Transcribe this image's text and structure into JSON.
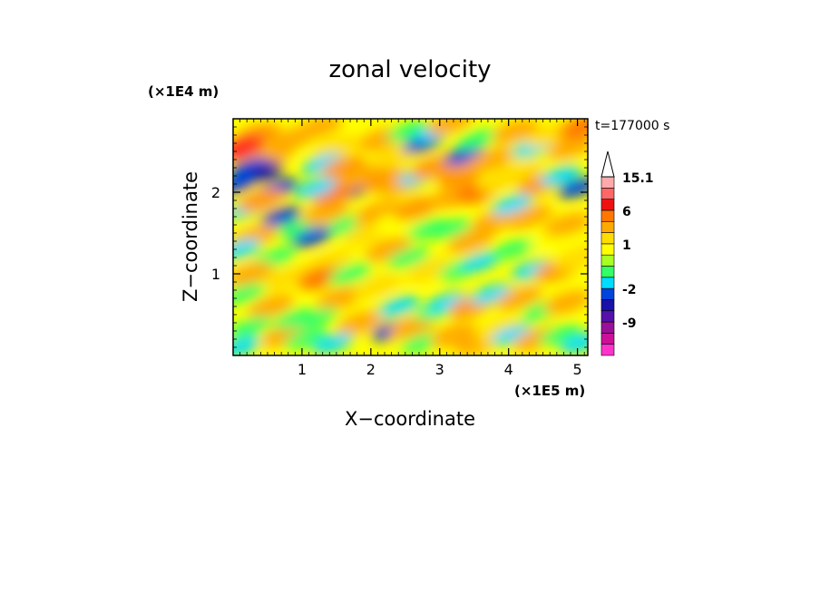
{
  "chart_data": {
    "type": "heatmap",
    "title": "zonal velocity",
    "xlabel": "X−coordinate",
    "ylabel": "Z−coordinate",
    "x_unit": "(×1E5 m)",
    "y_unit": "(×1E4 m)",
    "time_label": "t=177000 s",
    "xlim": [
      0,
      5.15
    ],
    "ylim": [
      0,
      2.9
    ],
    "x_ticks": [
      {
        "value": 1,
        "label": "1"
      },
      {
        "value": 2,
        "label": "2"
      },
      {
        "value": 3,
        "label": "3"
      },
      {
        "value": 4,
        "label": "4"
      },
      {
        "value": 5,
        "label": "5"
      }
    ],
    "y_ticks": [
      {
        "value": 1,
        "label": "1"
      },
      {
        "value": 2,
        "label": "2"
      }
    ],
    "colorbar": {
      "levels": [
        {
          "color": "#ff33cc"
        },
        {
          "color": "#cc1199"
        },
        {
          "color": "#991199",
          "label": "-9"
        },
        {
          "color": "#5511aa"
        },
        {
          "color": "#1a11aa"
        },
        {
          "color": "#0044dd",
          "label": "-2"
        },
        {
          "color": "#00ddff"
        },
        {
          "color": "#33ff66"
        },
        {
          "color": "#a8ff22"
        },
        {
          "color": "#ffff00",
          "label": "1"
        },
        {
          "color": "#ffdd00"
        },
        {
          "color": "#ffaa00"
        },
        {
          "color": "#ff7700",
          "label": "6"
        },
        {
          "color": "#ee1111"
        },
        {
          "color": "#ff6666"
        },
        {
          "color": "#ffaaaa",
          "label": "15.1"
        }
      ]
    },
    "features": [
      {
        "x": 0.35,
        "z": 2.7,
        "v": 4
      },
      {
        "x": 0.15,
        "z": 2.55,
        "v": 6
      },
      {
        "x": 0.55,
        "z": 2.45,
        "v": 3
      },
      {
        "x": 0.25,
        "z": 2.3,
        "v": -3
      },
      {
        "x": 0.45,
        "z": 2.25,
        "v": -4
      },
      {
        "x": 0.65,
        "z": 2.05,
        "v": -3
      },
      {
        "x": 0.05,
        "z": 2.1,
        "v": -3
      },
      {
        "x": 0.85,
        "z": 2.65,
        "v": 3
      },
      {
        "x": 0.2,
        "z": 1.8,
        "v": -2
      },
      {
        "x": 0.4,
        "z": 1.9,
        "v": 4
      },
      {
        "x": 0.7,
        "z": 1.7,
        "v": -3
      },
      {
        "x": 0.95,
        "z": 1.55,
        "v": -1
      },
      {
        "x": 0.3,
        "z": 1.45,
        "v": 3
      },
      {
        "x": 0.1,
        "z": 1.3,
        "v": -2
      },
      {
        "x": 0.6,
        "z": 1.2,
        "v": -1
      },
      {
        "x": 0.25,
        "z": 1.0,
        "v": 3
      },
      {
        "x": 0.8,
        "z": 0.95,
        "v": 2
      },
      {
        "x": 0.15,
        "z": 0.75,
        "v": -1
      },
      {
        "x": 0.55,
        "z": 0.6,
        "v": 3
      },
      {
        "x": 0.25,
        "z": 0.35,
        "v": -1
      },
      {
        "x": 0.75,
        "z": 0.25,
        "v": 3
      },
      {
        "x": 0.1,
        "z": 0.1,
        "v": -2
      },
      {
        "x": 0.9,
        "z": 0.45,
        "v": -1
      },
      {
        "x": 1.25,
        "z": 2.8,
        "v": 3
      },
      {
        "x": 1.5,
        "z": 2.55,
        "v": 2
      },
      {
        "x": 1.3,
        "z": 2.35,
        "v": -2
      },
      {
        "x": 1.6,
        "z": 2.3,
        "v": 4
      },
      {
        "x": 1.75,
        "z": 2.05,
        "v": -4
      },
      {
        "x": 1.45,
        "z": 2.0,
        "v": 5
      },
      {
        "x": 1.2,
        "z": 2.05,
        "v": -2
      },
      {
        "x": 1.9,
        "z": 2.2,
        "v": 3
      },
      {
        "x": 1.35,
        "z": 1.75,
        "v": 3
      },
      {
        "x": 1.65,
        "z": 1.6,
        "v": -1
      },
      {
        "x": 1.15,
        "z": 1.45,
        "v": -3
      },
      {
        "x": 1.95,
        "z": 1.5,
        "v": 2
      },
      {
        "x": 1.4,
        "z": 1.15,
        "v": 2
      },
      {
        "x": 1.25,
        "z": 0.95,
        "v": 5
      },
      {
        "x": 1.7,
        "z": 1.0,
        "v": -1
      },
      {
        "x": 1.55,
        "z": 0.7,
        "v": 3
      },
      {
        "x": 1.2,
        "z": 0.45,
        "v": -1
      },
      {
        "x": 1.85,
        "z": 0.4,
        "v": 3
      },
      {
        "x": 1.45,
        "z": 0.15,
        "v": -2
      },
      {
        "x": 1.05,
        "z": 0.2,
        "v": -1
      },
      {
        "x": 2.15,
        "z": 2.65,
        "v": 3
      },
      {
        "x": 2.35,
        "z": 2.45,
        "v": 2
      },
      {
        "x": 2.55,
        "z": 2.75,
        "v": -1
      },
      {
        "x": 2.75,
        "z": 2.6,
        "v": -3
      },
      {
        "x": 2.95,
        "z": 2.75,
        "v": -2
      },
      {
        "x": 2.2,
        "z": 2.15,
        "v": 4
      },
      {
        "x": 2.45,
        "z": 2.1,
        "v": 3
      },
      {
        "x": 2.7,
        "z": 2.2,
        "v": -2
      },
      {
        "x": 2.9,
        "z": 2.3,
        "v": 4
      },
      {
        "x": 2.1,
        "z": 1.75,
        "v": 3
      },
      {
        "x": 2.4,
        "z": 1.65,
        "v": 1
      },
      {
        "x": 2.65,
        "z": 1.8,
        "v": 4
      },
      {
        "x": 2.85,
        "z": 1.55,
        "v": -1
      },
      {
        "x": 2.25,
        "z": 1.3,
        "v": 3
      },
      {
        "x": 2.55,
        "z": 1.2,
        "v": -1
      },
      {
        "x": 2.85,
        "z": 1.05,
        "v": 2
      },
      {
        "x": 2.1,
        "z": 0.85,
        "v": 2
      },
      {
        "x": 2.4,
        "z": 0.6,
        "v": -2
      },
      {
        "x": 2.3,
        "z": 0.3,
        "v": -3
      },
      {
        "x": 2.6,
        "z": 0.35,
        "v": 3
      },
      {
        "x": 2.95,
        "z": 0.55,
        "v": -1
      },
      {
        "x": 2.75,
        "z": 0.15,
        "v": -1
      },
      {
        "x": 3.15,
        "z": 2.85,
        "v": 3
      },
      {
        "x": 3.35,
        "z": 2.45,
        "v": -3
      },
      {
        "x": 3.3,
        "z": 2.2,
        "v": 4
      },
      {
        "x": 3.55,
        "z": 2.65,
        "v": -1
      },
      {
        "x": 3.75,
        "z": 2.4,
        "v": 3
      },
      {
        "x": 3.2,
        "z": 1.95,
        "v": 3
      },
      {
        "x": 3.55,
        "z": 2.0,
        "v": 5
      },
      {
        "x": 3.9,
        "z": 2.15,
        "v": 2
      },
      {
        "x": 3.15,
        "z": 1.55,
        "v": -1
      },
      {
        "x": 3.45,
        "z": 1.4,
        "v": 3
      },
      {
        "x": 3.8,
        "z": 1.65,
        "v": 3
      },
      {
        "x": 3.3,
        "z": 1.05,
        "v": -1
      },
      {
        "x": 3.6,
        "z": 1.15,
        "v": -2
      },
      {
        "x": 3.1,
        "z": 0.65,
        "v": -2
      },
      {
        "x": 3.45,
        "z": 0.6,
        "v": 4
      },
      {
        "x": 3.75,
        "z": 0.75,
        "v": -2
      },
      {
        "x": 3.2,
        "z": 0.25,
        "v": 3
      },
      {
        "x": 3.55,
        "z": 0.15,
        "v": 3
      },
      {
        "x": 3.85,
        "z": 0.3,
        "v": 2
      },
      {
        "x": 4.1,
        "z": 2.75,
        "v": 3
      },
      {
        "x": 4.35,
        "z": 2.55,
        "v": -2
      },
      {
        "x": 4.6,
        "z": 2.7,
        "v": 2
      },
      {
        "x": 4.9,
        "z": 2.55,
        "v": 3
      },
      {
        "x": 5.05,
        "z": 2.8,
        "v": 5
      },
      {
        "x": 4.15,
        "z": 2.25,
        "v": 2
      },
      {
        "x": 4.45,
        "z": 2.1,
        "v": 4
      },
      {
        "x": 4.75,
        "z": 2.2,
        "v": -2
      },
      {
        "x": 5.0,
        "z": 2.05,
        "v": -3
      },
      {
        "x": 4.05,
        "z": 1.85,
        "v": -2
      },
      {
        "x": 4.3,
        "z": 1.7,
        "v": 3
      },
      {
        "x": 4.6,
        "z": 1.45,
        "v": 1
      },
      {
        "x": 4.85,
        "z": 1.6,
        "v": 3
      },
      {
        "x": 4.05,
        "z": 1.3,
        "v": -1
      },
      {
        "x": 4.35,
        "z": 1.05,
        "v": -2
      },
      {
        "x": 4.7,
        "z": 1.05,
        "v": 4
      },
      {
        "x": 5.0,
        "z": 1.2,
        "v": 2
      },
      {
        "x": 4.15,
        "z": 0.7,
        "v": 3
      },
      {
        "x": 4.5,
        "z": 0.55,
        "v": -1
      },
      {
        "x": 4.85,
        "z": 0.65,
        "v": 3
      },
      {
        "x": 4.05,
        "z": 0.25,
        "v": -2
      },
      {
        "x": 4.4,
        "z": 0.2,
        "v": 3
      },
      {
        "x": 4.75,
        "z": 0.25,
        "v": -1
      },
      {
        "x": 5.05,
        "z": 0.15,
        "v": -2
      }
    ]
  }
}
